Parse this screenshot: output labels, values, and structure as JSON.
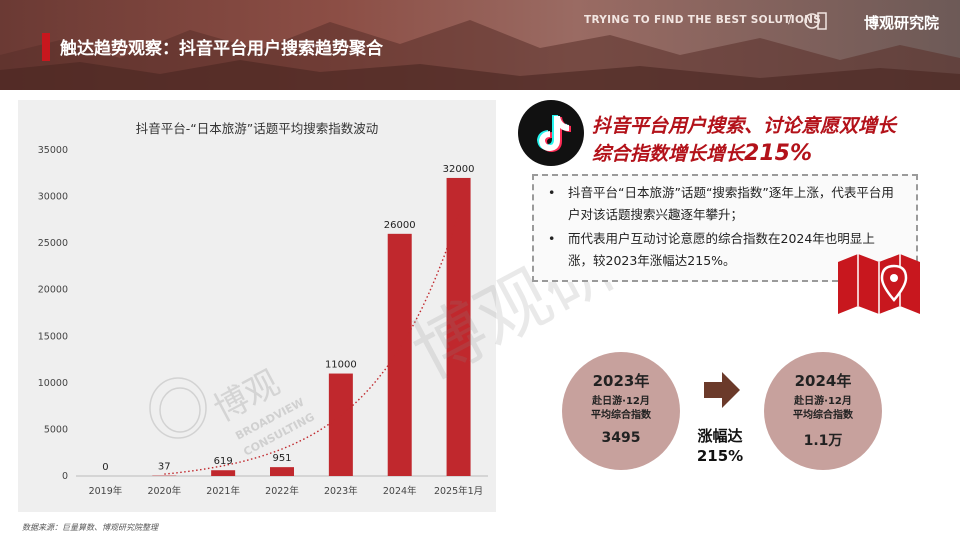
{
  "header": {
    "title": "触达趋势观察：抖音平台用户搜索趋势聚合",
    "slogan": "TRYING TO FIND THE BEST SOLUTIONS",
    "separator": "/",
    "brand": "博观研究院",
    "accent_color": "#c8171e"
  },
  "chart_data": {
    "type": "bar",
    "title": "抖音平台-“日本旅游”话题平均搜索指数波动",
    "categories": [
      "2019年",
      "2020年",
      "2021年",
      "2022年",
      "2023年",
      "2024年",
      "2025年1月"
    ],
    "values": [
      0,
      37,
      619,
      951,
      11000,
      26000,
      32000
    ],
    "data_labels": [
      "0",
      "37",
      "619",
      "951",
      "11000",
      "26000",
      "32000"
    ],
    "ylim": [
      0,
      35000
    ],
    "yticks": [
      "0",
      "5000",
      "10000",
      "15000",
      "20000",
      "25000",
      "30000",
      "35000"
    ],
    "bar_color": "#c0282d",
    "trendline": "dotted-red",
    "grid": false
  },
  "source": "数据来源：巨量算数、博观研究院整理",
  "icons": {
    "tiktok": "tiktok-logo-icon",
    "map": "map-pin-icon",
    "arrow": "right-arrow-icon"
  },
  "headline": {
    "line1": "抖音平台用户搜索、讨论意愿双增长",
    "line2_prefix": "综合指数增长增长",
    "line2_pct": "215%"
  },
  "bullets": [
    "抖音平台“日本旅游”话题“搜索指数”逐年上涨，代表平台用户对该话题搜索兴趣逐年攀升；",
    "而代表用户互动讨论意愿的综合指数在2024年也明显上涨，较2023年涨幅达215%。"
  ],
  "bullet_symbol": "•",
  "compare": {
    "left": {
      "year": "2023年",
      "line1": "赴日游·12月",
      "line2": "平均综合指数",
      "value": "3495"
    },
    "right": {
      "year": "2024年",
      "line1": "赴日游·12月",
      "line2": "平均综合指数",
      "value": "1.1万"
    },
    "growth_label": "涨幅达",
    "growth_value": "215%"
  },
  "watermark": {
    "text": "博观研究",
    "small": "博观",
    "en1": "BROADVIEW",
    "en2": "CONSULTING"
  }
}
